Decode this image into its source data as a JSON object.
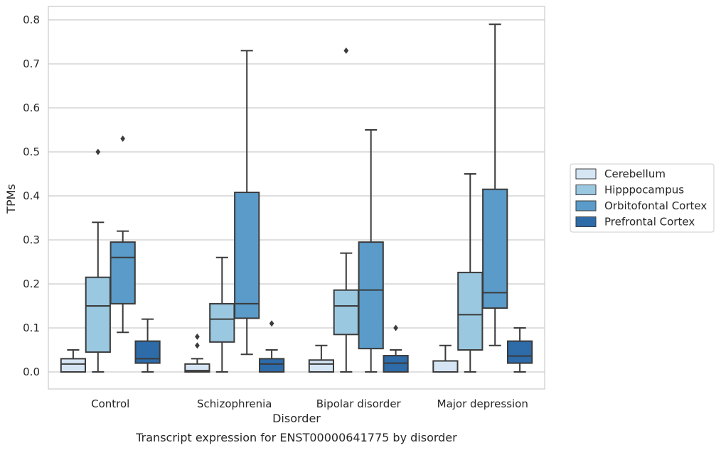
{
  "chart_data": {
    "type": "box",
    "xlabel": "Disorder",
    "ylabel": "TPMs",
    "caption": "Transcript expression for ENST00000641775 by disorder",
    "ylim": [
      -0.04,
      0.83
    ],
    "yticks": [
      "0.0",
      "0.1",
      "0.2",
      "0.3",
      "0.4",
      "0.5",
      "0.6",
      "0.7",
      "0.8"
    ],
    "grid": "horizontal",
    "legend_position": "right",
    "categories": [
      "Control",
      "Schizophrenia",
      "Bipolar disorder",
      "Major depression"
    ],
    "series": [
      {
        "name": "Cerebellum",
        "color": "#d6e5f4",
        "boxes": [
          {
            "whislo": 0.0,
            "q1": 0.0,
            "med": 0.018,
            "q3": 0.03,
            "whishi": 0.05,
            "fliers": []
          },
          {
            "whislo": 0.0,
            "q1": 0.0,
            "med": 0.003,
            "q3": 0.018,
            "whishi": 0.03,
            "fliers": [
              0.06,
              0.08
            ]
          },
          {
            "whislo": 0.0,
            "q1": 0.0,
            "med": 0.018,
            "q3": 0.027,
            "whishi": 0.06,
            "fliers": []
          },
          {
            "whislo": 0.0,
            "q1": 0.0,
            "med": 0.0,
            "q3": 0.025,
            "whishi": 0.06,
            "fliers": []
          }
        ]
      },
      {
        "name": "Hipppocampus",
        "color": "#9ac8e0",
        "boxes": [
          {
            "whislo": 0.0,
            "q1": 0.045,
            "med": 0.15,
            "q3": 0.215,
            "whishi": 0.34,
            "fliers": [
              0.5
            ]
          },
          {
            "whislo": 0.0,
            "q1": 0.068,
            "med": 0.12,
            "q3": 0.155,
            "whishi": 0.26,
            "fliers": []
          },
          {
            "whislo": 0.0,
            "q1": 0.085,
            "med": 0.15,
            "q3": 0.186,
            "whishi": 0.27,
            "fliers": [
              0.73
            ]
          },
          {
            "whislo": 0.0,
            "q1": 0.05,
            "med": 0.13,
            "q3": 0.226,
            "whishi": 0.45,
            "fliers": []
          }
        ]
      },
      {
        "name": "Orbitofontal Cortex",
        "color": "#5a9bc9",
        "boxes": [
          {
            "whislo": 0.09,
            "q1": 0.155,
            "med": 0.26,
            "q3": 0.295,
            "whishi": 0.32,
            "fliers": [
              0.53
            ]
          },
          {
            "whislo": 0.04,
            "q1": 0.122,
            "med": 0.155,
            "q3": 0.408,
            "whishi": 0.73,
            "fliers": []
          },
          {
            "whislo": 0.0,
            "q1": 0.053,
            "med": 0.186,
            "q3": 0.295,
            "whishi": 0.55,
            "fliers": []
          },
          {
            "whislo": 0.06,
            "q1": 0.145,
            "med": 0.18,
            "q3": 0.415,
            "whishi": 0.79,
            "fliers": []
          }
        ]
      },
      {
        "name": "Prefrontal Cortex",
        "color": "#2d6ba9",
        "boxes": [
          {
            "whislo": 0.0,
            "q1": 0.02,
            "med": 0.03,
            "q3": 0.07,
            "whishi": 0.12,
            "fliers": []
          },
          {
            "whislo": 0.0,
            "q1": 0.0,
            "med": 0.018,
            "q3": 0.03,
            "whishi": 0.05,
            "fliers": [
              0.11
            ]
          },
          {
            "whislo": 0.0,
            "q1": 0.0,
            "med": 0.02,
            "q3": 0.037,
            "whishi": 0.05,
            "fliers": [
              0.1
            ]
          },
          {
            "whislo": 0.0,
            "q1": 0.02,
            "med": 0.036,
            "q3": 0.07,
            "whishi": 0.1,
            "fliers": []
          }
        ]
      }
    ]
  }
}
